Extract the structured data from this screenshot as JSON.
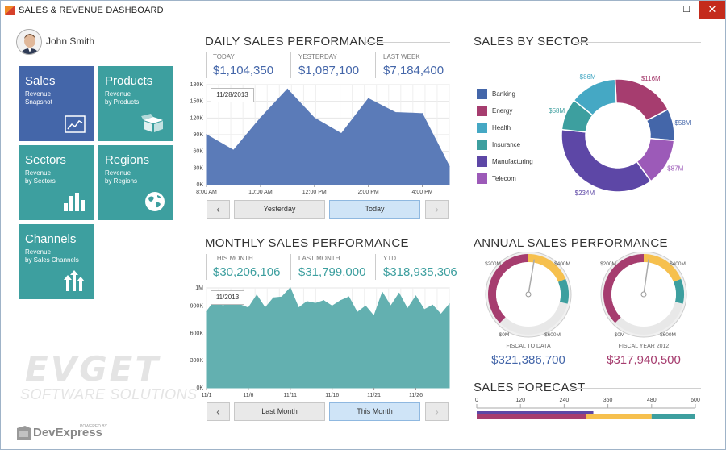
{
  "window": {
    "title": "SALES & REVENUE DASHBOARD",
    "min": "–",
    "max": "☐",
    "close": "✕"
  },
  "user": {
    "name": "John Smith"
  },
  "tiles": {
    "sales": {
      "title": "Sales",
      "sub": "Revenue\nSnapshot",
      "icon": "line-chart-icon"
    },
    "products": {
      "title": "Products",
      "sub": "Revenue\nby Products",
      "icon": "box-icon"
    },
    "sectors": {
      "title": "Sectors",
      "sub": "Revenue\nby Sectors",
      "icon": "bar-chart-icon"
    },
    "regions": {
      "title": "Regions",
      "sub": "Revenue\nby Regions",
      "icon": "globe-icon"
    },
    "channels": {
      "title": "Channels",
      "sub": "Revenue\nby Sales Channels",
      "icon": "arrows-up-icon"
    }
  },
  "watermark": {
    "brand": "EVGET",
    "tagline": "SOFTWARE SOLUTIONS",
    "powered": "POWERED BY",
    "vendor": "DevExpress"
  },
  "daily": {
    "title": "DAILY SALES PERFORMANCE",
    "stats": [
      {
        "label": "TODAY",
        "value": "$1,104,350"
      },
      {
        "label": "YESTERDAY",
        "value": "$1,087,100"
      },
      {
        "label": "LAST WEEK",
        "value": "$7,184,400"
      }
    ],
    "date_label": "11/28/2013",
    "nav": {
      "prev": "‹",
      "btn1": "Yesterday",
      "btn2": "Today",
      "next": "›"
    }
  },
  "monthly": {
    "title": "MONTHLY SALES PERFORMANCE",
    "stats": [
      {
        "label": "THIS MONTH",
        "value": "$30,206,106"
      },
      {
        "label": "LAST MONTH",
        "value": "$31,799,000"
      },
      {
        "label": "YTD",
        "value": "$318,935,306"
      }
    ],
    "date_label": "11/2013",
    "nav": {
      "prev": "‹",
      "btn1": "Last Month",
      "btn2": "This Month",
      "next": "›"
    }
  },
  "sector": {
    "title": "SALES BY SECTOR"
  },
  "annual": {
    "title": "ANNUAL SALES PERFORMANCE",
    "gauges": [
      {
        "caption": "FISCAL TO DATA",
        "value": "$321,386,700",
        "color": "#4466a9"
      },
      {
        "caption": "FISCAL YEAR 2012",
        "value": "$317,940,500",
        "color": "#a63d6f"
      }
    ]
  },
  "forecast": {
    "title": "SALES FORECAST"
  },
  "chart_data": [
    {
      "type": "area",
      "title": "DAILY SALES PERFORMANCE",
      "color": "#5b7bb8",
      "x_ticks": [
        "8:00 AM",
        "10:00 AM",
        "12:00 PM",
        "2:00 PM",
        "4:00 PM"
      ],
      "y_ticks": [
        "0K",
        "30K",
        "60K",
        "90K",
        "120K",
        "150K",
        "180K"
      ],
      "ylim": [
        0,
        180
      ],
      "x_hours": [
        8,
        9,
        10,
        11,
        12,
        13,
        14,
        15,
        16,
        17
      ],
      "values": [
        90,
        62,
        120,
        172,
        120,
        92,
        155,
        130,
        128,
        33
      ],
      "grid": true
    },
    {
      "type": "area",
      "title": "MONTHLY SALES PERFORMANCE",
      "color": "#63b0b0",
      "x_ticks": [
        "11/1",
        "11/6",
        "11/11",
        "11/16",
        "11/21",
        "11/26"
      ],
      "y_ticks": [
        "0K",
        "300K",
        "600K",
        "900K",
        "1M"
      ],
      "ylim": [
        0,
        1100
      ],
      "x_days": [
        1,
        2,
        3,
        4,
        5,
        6,
        7,
        8,
        9,
        10,
        11,
        12,
        13,
        14,
        15,
        16,
        17,
        18,
        19,
        20,
        21,
        22,
        23,
        24,
        25,
        26,
        27,
        28,
        29,
        30
      ],
      "values": [
        840,
        960,
        900,
        985,
        915,
        880,
        1020,
        880,
        990,
        1000,
        1100,
        880,
        950,
        930,
        960,
        900,
        960,
        1000,
        830,
        900,
        790,
        1050,
        900,
        1040,
        870,
        1010,
        860,
        910,
        810,
        920
      ],
      "grid": true
    },
    {
      "type": "pie",
      "title": "SALES BY SECTOR",
      "donut": true,
      "categories": [
        "Banking",
        "Energy",
        "Health",
        "Insurance",
        "Manufacturing",
        "Telecom"
      ],
      "values": [
        58,
        116,
        86,
        58,
        234,
        87
      ],
      "labels": [
        "$58M",
        "$116M",
        "$86M",
        "$58M",
        "$234M",
        "$87M"
      ],
      "colors": [
        "#4466a9",
        "#a63d6f",
        "#45a8c4",
        "#3d9f9f",
        "#5d47a6",
        "#9c5ab8"
      ],
      "legend": "left"
    },
    {
      "type": "gauge",
      "title": "ANNUAL SALES PERFORMANCE",
      "scale_labels": [
        "$0M",
        "$200M",
        "$400M",
        "$600M"
      ],
      "range": [
        0,
        600
      ],
      "gauges": [
        {
          "caption": "FISCAL TO DATA",
          "value": 321.4,
          "bands": [
            {
              "from": 0,
              "to": 300,
              "color": "#a63d6f"
            },
            {
              "from": 300,
              "to": 450,
              "color": "#f6c04e"
            },
            {
              "from": 450,
              "to": 530,
              "color": "#3d9f9f"
            }
          ]
        },
        {
          "caption": "FISCAL YEAR 2012",
          "value": 317.9,
          "bands": [
            {
              "from": 0,
              "to": 300,
              "color": "#a63d6f"
            },
            {
              "from": 300,
              "to": 450,
              "color": "#f6c04e"
            },
            {
              "from": 450,
              "to": 530,
              "color": "#3d9f9f"
            }
          ]
        }
      ]
    },
    {
      "type": "bar",
      "title": "SALES FORECAST",
      "orientation": "horizontal",
      "x_ticks": [
        "0",
        "120",
        "240",
        "360",
        "480",
        "600"
      ],
      "xlim": [
        0,
        600
      ],
      "top_bar": [
        {
          "value": 320,
          "color": "#5d47a6"
        }
      ],
      "bottom_bar": [
        {
          "from": 0,
          "to": 300,
          "color": "#a63d6f"
        },
        {
          "from": 300,
          "to": 480,
          "color": "#f6c04e"
        },
        {
          "from": 480,
          "to": 600,
          "color": "#3d9f9f"
        }
      ]
    }
  ]
}
